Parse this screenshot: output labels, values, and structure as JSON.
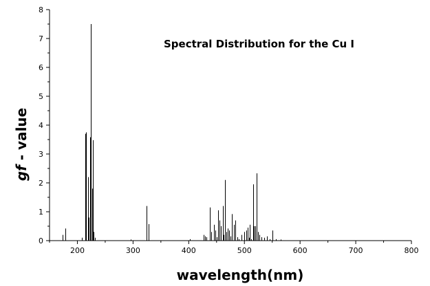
{
  "chart_data": {
    "type": "bar",
    "title": "Spectral Distribution for the Cu I",
    "xlabel": "wavelength(nm)",
    "ylabel_italic": "gf",
    "ylabel_rest": " - value",
    "xlim": [
      150,
      800
    ],
    "ylim": [
      0,
      8
    ],
    "xticks": [
      200,
      300,
      400,
      500,
      600,
      700,
      800
    ],
    "xtick_labels": [
      "200",
      "300",
      "400",
      "500",
      "600",
      "700",
      "800"
    ],
    "yticks": [
      0,
      1,
      2,
      3,
      4,
      5,
      6,
      7,
      8
    ],
    "ytick_labels": [
      "0",
      "1",
      "2",
      "3",
      "4",
      "5",
      "6",
      "7",
      "8"
    ],
    "grid": false,
    "bar_color": "#000000",
    "lines": [
      {
        "x": 174,
        "y": 0.2
      },
      {
        "x": 178,
        "y": 0.42
      },
      {
        "x": 208,
        "y": 0.1
      },
      {
        "x": 214,
        "y": 3.7
      },
      {
        "x": 216,
        "y": 3.75
      },
      {
        "x": 219,
        "y": 2.2
      },
      {
        "x": 221,
        "y": 0.8
      },
      {
        "x": 222.5,
        "y": 3.58
      },
      {
        "x": 224.5,
        "y": 7.5
      },
      {
        "x": 226,
        "y": 1.8
      },
      {
        "x": 227.5,
        "y": 3.48
      },
      {
        "x": 229,
        "y": 0.3
      },
      {
        "x": 231,
        "y": 0.1
      },
      {
        "x": 296,
        "y": 0.04
      },
      {
        "x": 324.7,
        "y": 1.2
      },
      {
        "x": 327.4,
        "y": 0.57
      },
      {
        "x": 402,
        "y": 0.05
      },
      {
        "x": 427,
        "y": 0.2
      },
      {
        "x": 429,
        "y": 0.15
      },
      {
        "x": 432,
        "y": 0.12
      },
      {
        "x": 438,
        "y": 1.15
      },
      {
        "x": 441,
        "y": 0.3
      },
      {
        "x": 445,
        "y": 0.55
      },
      {
        "x": 448,
        "y": 0.35
      },
      {
        "x": 450,
        "y": 0.12
      },
      {
        "x": 453,
        "y": 1.05
      },
      {
        "x": 455,
        "y": 0.7
      },
      {
        "x": 458,
        "y": 0.5
      },
      {
        "x": 461,
        "y": 1.2
      },
      {
        "x": 463,
        "y": 0.2
      },
      {
        "x": 465,
        "y": 2.1
      },
      {
        "x": 468,
        "y": 0.3
      },
      {
        "x": 470,
        "y": 0.42
      },
      {
        "x": 472,
        "y": 0.35
      },
      {
        "x": 475,
        "y": 0.15
      },
      {
        "x": 478,
        "y": 0.92
      },
      {
        "x": 481,
        "y": 0.55
      },
      {
        "x": 484,
        "y": 0.7
      },
      {
        "x": 487,
        "y": 0.12
      },
      {
        "x": 490,
        "y": 0.05
      },
      {
        "x": 495,
        "y": 0.2
      },
      {
        "x": 500,
        "y": 0.3
      },
      {
        "x": 503,
        "y": 0.35
      },
      {
        "x": 506,
        "y": 0.45
      },
      {
        "x": 508,
        "y": 0.1
      },
      {
        "x": 510,
        "y": 0.55
      },
      {
        "x": 512,
        "y": 0.05
      },
      {
        "x": 515.3,
        "y": 1.95
      },
      {
        "x": 517,
        "y": 0.5
      },
      {
        "x": 519,
        "y": 0.5
      },
      {
        "x": 521.8,
        "y": 2.33
      },
      {
        "x": 524,
        "y": 0.3
      },
      {
        "x": 527,
        "y": 0.2
      },
      {
        "x": 530,
        "y": 0.12
      },
      {
        "x": 535,
        "y": 0.1
      },
      {
        "x": 540,
        "y": 0.15
      },
      {
        "x": 545,
        "y": 0.05
      },
      {
        "x": 550,
        "y": 0.35
      },
      {
        "x": 556,
        "y": 0.05
      },
      {
        "x": 565,
        "y": 0.04
      }
    ]
  }
}
